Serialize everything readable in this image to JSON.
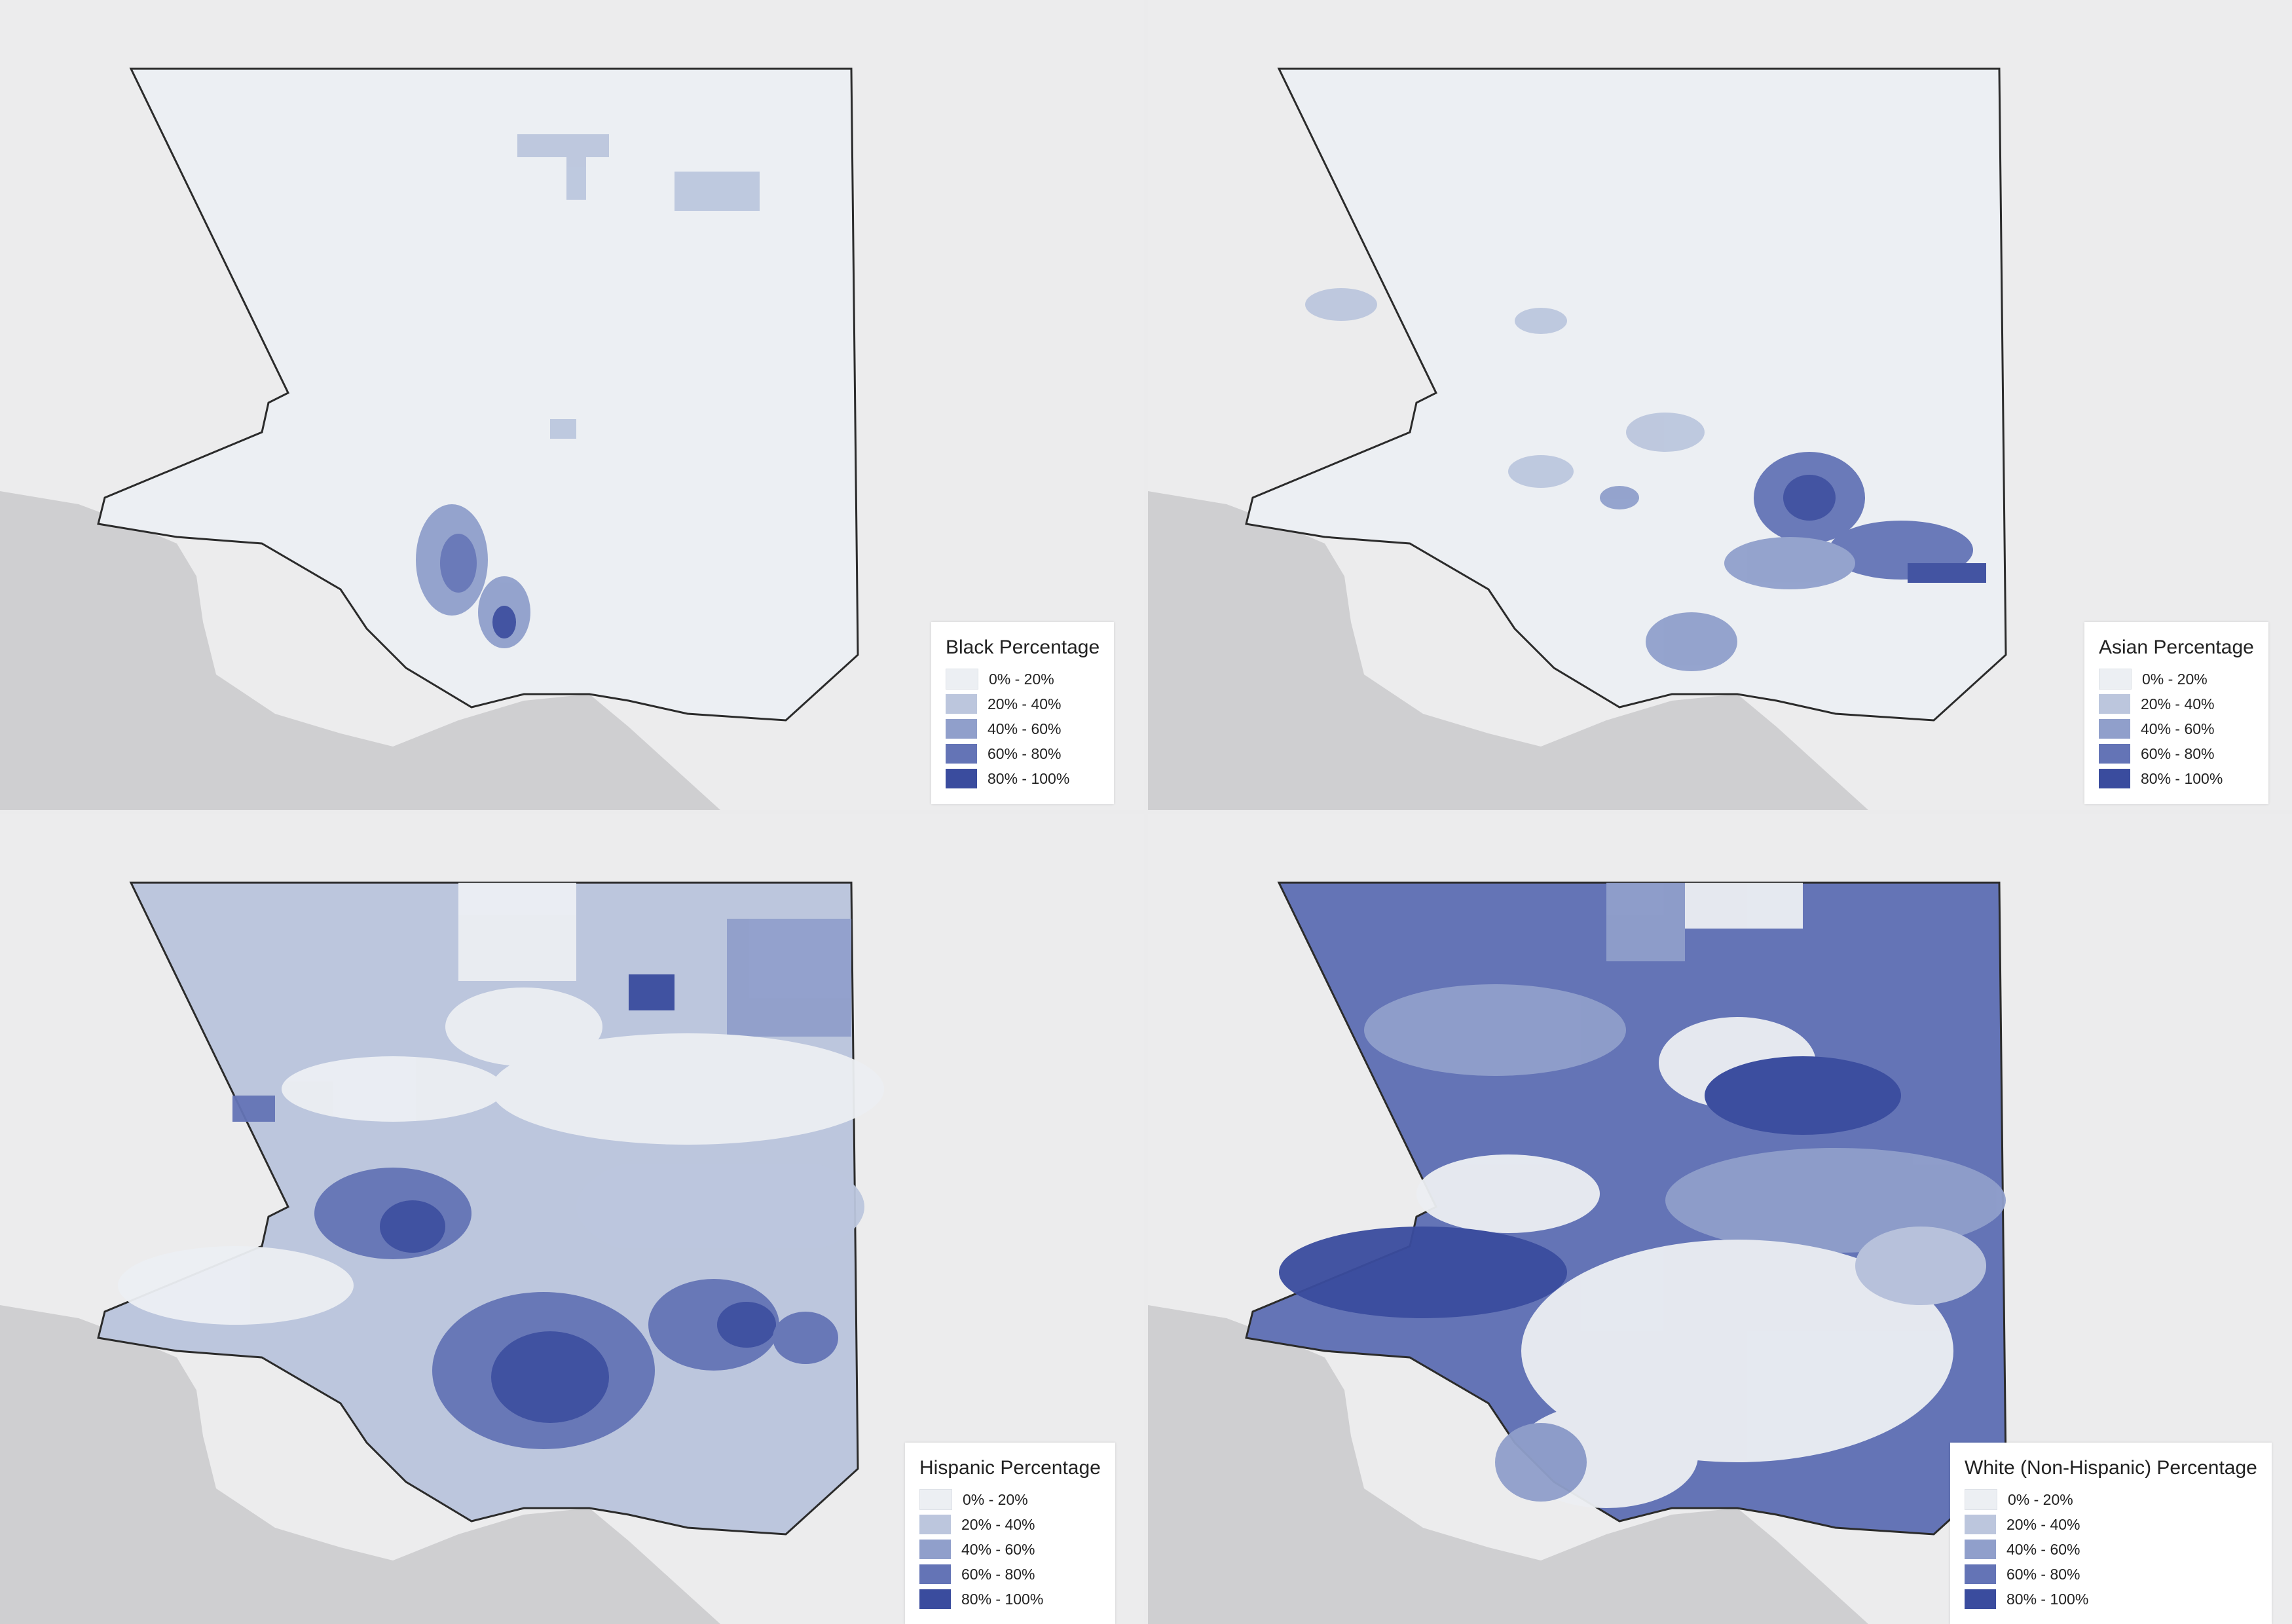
{
  "panels": [
    {
      "title": "Black Percentage"
    },
    {
      "title": "Asian Percentage"
    },
    {
      "title": "Hispanic Percentage"
    },
    {
      "title": "White (Non-Hispanic) Percentage"
    }
  ],
  "legend_classes": [
    {
      "label": "0% - 20%",
      "color": "#eceff3"
    },
    {
      "label": "20% - 40%",
      "color": "#bcc6dd"
    },
    {
      "label": "40% - 60%",
      "color": "#909fcb"
    },
    {
      "label": "60% - 80%",
      "color": "#6474b6"
    },
    {
      "label": "80% - 100%",
      "color": "#3a4c9e"
    }
  ],
  "colors": {
    "ocean": "#cfcfd1",
    "land": "#ececed",
    "county_outline": "#2b2b2b"
  }
}
